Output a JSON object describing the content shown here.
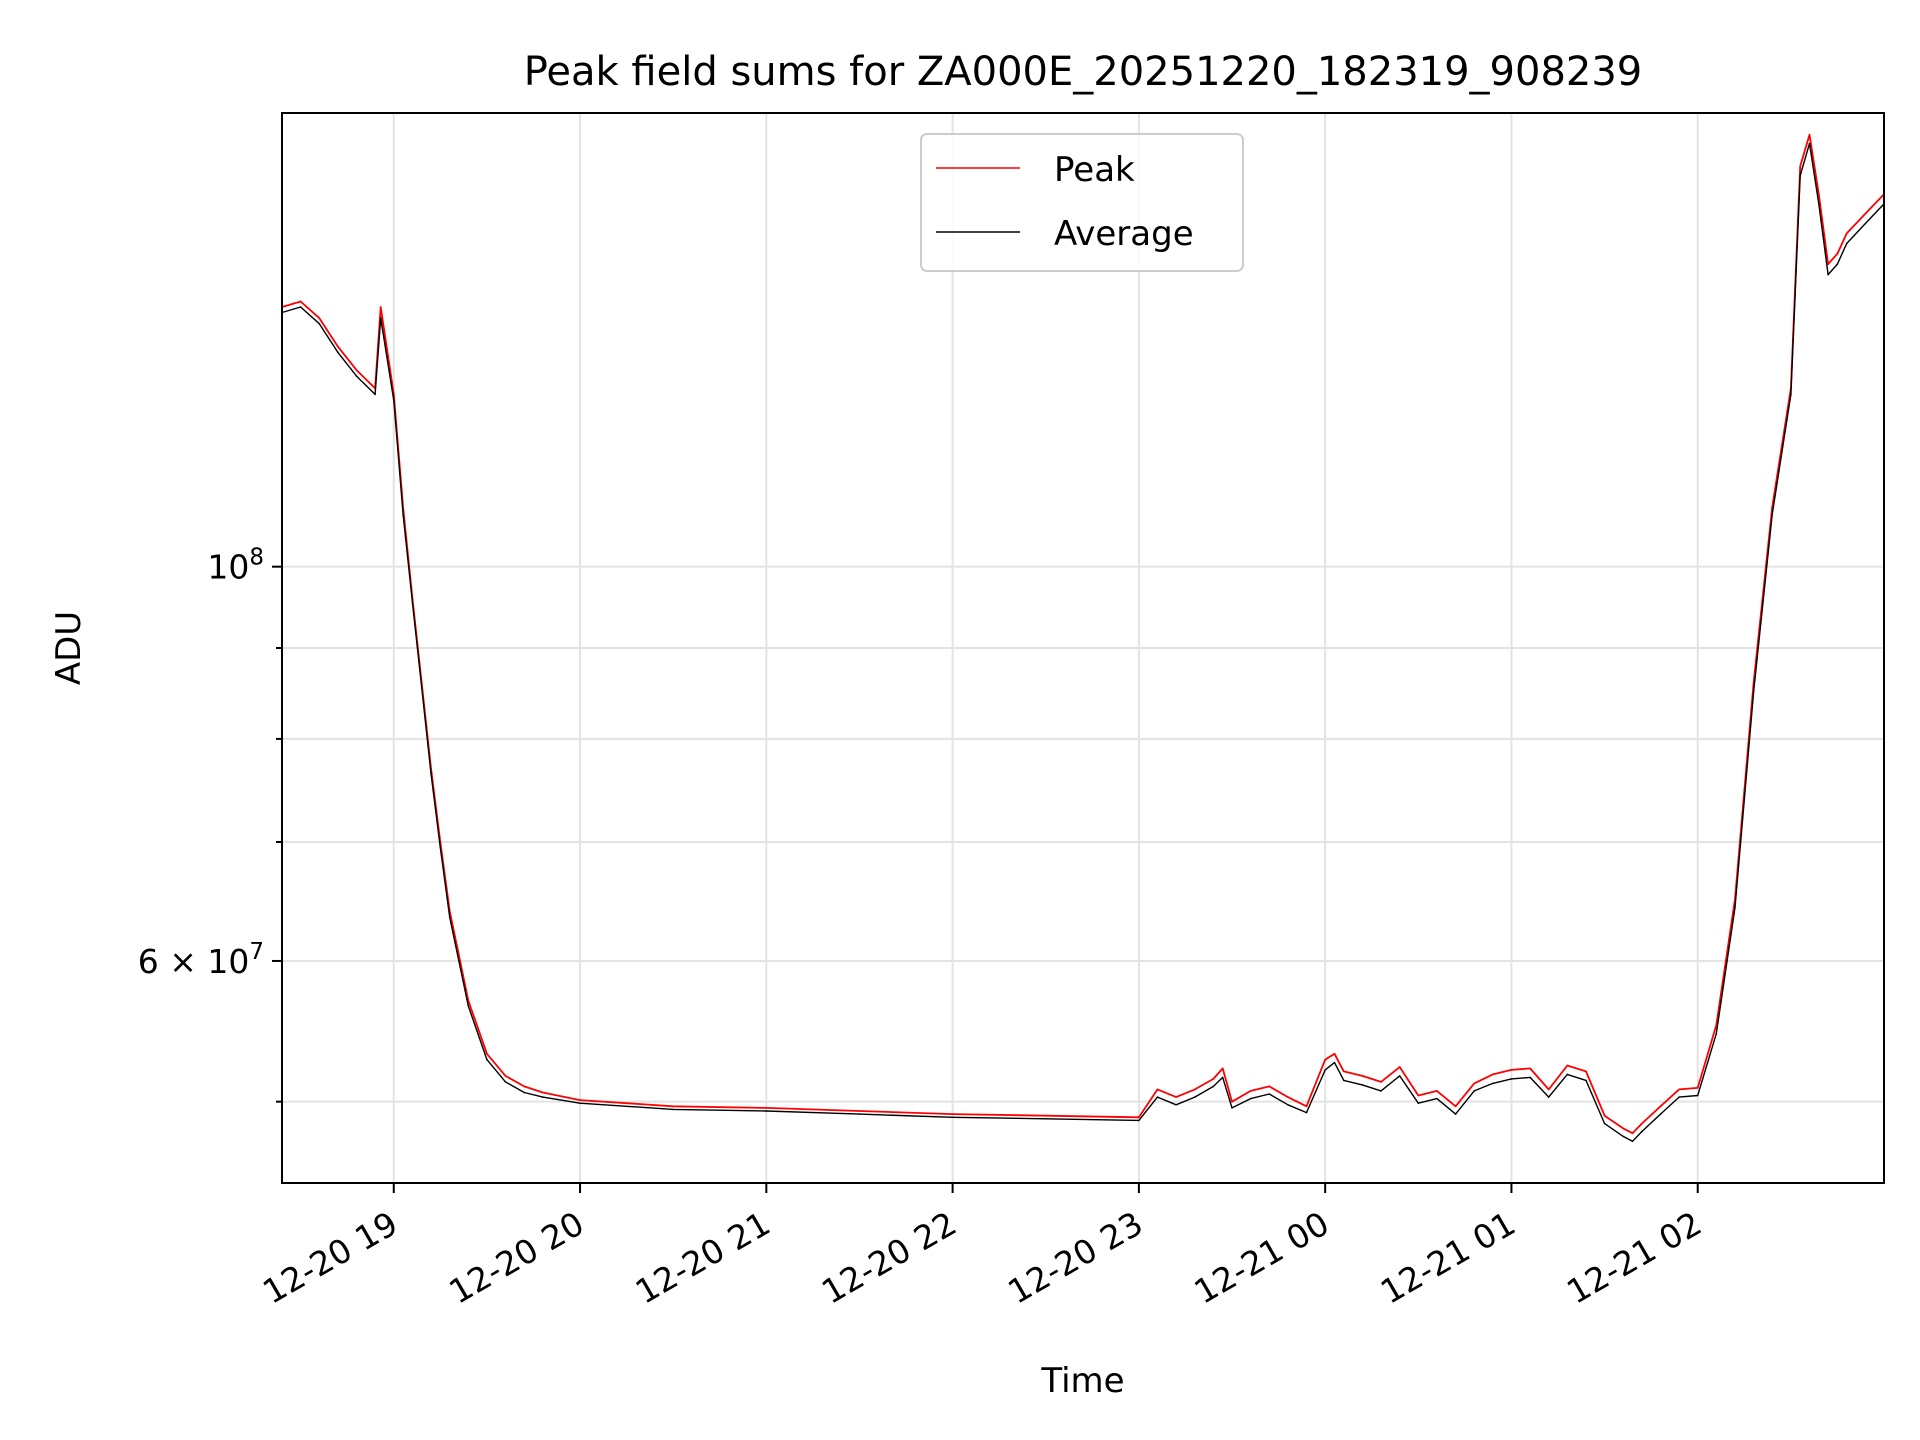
{
  "chart_data": {
    "type": "line",
    "title": "Peak field sums for ZA000E_20251220_182319_908239",
    "xlabel": "Time",
    "ylabel": "ADU",
    "yscale": "log",
    "ylim": [
      45000000,
      180000000
    ],
    "xlim_hours": [
      18.4,
      27.0
    ],
    "grid": true,
    "legend_position": "upper center",
    "x_ticks": [
      {
        "hour": 19,
        "label": "12-20 19"
      },
      {
        "hour": 20,
        "label": "12-20 20"
      },
      {
        "hour": 21,
        "label": "12-20 21"
      },
      {
        "hour": 22,
        "label": "12-20 22"
      },
      {
        "hour": 23,
        "label": "12-20 23"
      },
      {
        "hour": 24,
        "label": "12-21 00"
      },
      {
        "hour": 25,
        "label": "12-21 01"
      },
      {
        "hour": 26,
        "label": "12-21 02"
      }
    ],
    "y_major_ticks": [
      {
        "value": 60000000,
        "base": "6 × 10",
        "exp": "7"
      },
      {
        "value": 100000000,
        "base": "10",
        "exp": "8"
      }
    ],
    "y_minor_ticks": [
      50000000,
      70000000,
      80000000,
      90000000
    ],
    "series": [
      {
        "name": "Peak",
        "color": "#ff0000",
        "x": [
          18.4,
          18.5,
          18.6,
          18.7,
          18.8,
          18.9,
          18.93,
          19.0,
          19.05,
          19.1,
          19.15,
          19.2,
          19.25,
          19.3,
          19.4,
          19.5,
          19.6,
          19.7,
          19.8,
          20.0,
          20.5,
          21.0,
          21.5,
          22.0,
          22.5,
          23.0,
          23.1,
          23.2,
          23.3,
          23.4,
          23.45,
          23.5,
          23.6,
          23.7,
          23.8,
          23.9,
          24.0,
          24.05,
          24.1,
          24.2,
          24.3,
          24.4,
          24.5,
          24.6,
          24.7,
          24.8,
          24.9,
          25.0,
          25.1,
          25.2,
          25.3,
          25.4,
          25.5,
          25.6,
          25.65,
          25.7,
          25.8,
          25.9,
          26.0,
          26.1,
          26.2,
          26.3,
          26.4,
          26.5,
          26.55,
          26.6,
          26.65,
          26.7,
          26.75,
          26.8,
          26.9,
          27.0
        ],
        "values": [
          140000000,
          141000000,
          138000000,
          133000000,
          129000000,
          126000000,
          140000000,
          125000000,
          108000000,
          96000000,
          86000000,
          77000000,
          70000000,
          64000000,
          57000000,
          53200000,
          51700000,
          51000000,
          50600000,
          50100000,
          49700000,
          49600000,
          49400000,
          49200000,
          49100000,
          49000000,
          50800000,
          50300000,
          50800000,
          51500000,
          52200000,
          50000000,
          50700000,
          51000000,
          50300000,
          49700000,
          52800000,
          53200000,
          52000000,
          51700000,
          51300000,
          52300000,
          50400000,
          50700000,
          49700000,
          51200000,
          51800000,
          52100000,
          52200000,
          50800000,
          52400000,
          52000000,
          49100000,
          48300000,
          48000000,
          48600000,
          49700000,
          50800000,
          50900000,
          55200000,
          65000000,
          86000000,
          108000000,
          126000000,
          168000000,
          175000000,
          162000000,
          148000000,
          150000000,
          154000000,
          158000000,
          162000000
        ]
      },
      {
        "name": "Average",
        "color": "#000000",
        "x": [
          18.4,
          18.5,
          18.6,
          18.7,
          18.8,
          18.9,
          18.93,
          19.0,
          19.05,
          19.1,
          19.15,
          19.2,
          19.25,
          19.3,
          19.4,
          19.5,
          19.6,
          19.7,
          19.8,
          20.0,
          20.5,
          21.0,
          21.5,
          22.0,
          22.5,
          23.0,
          23.1,
          23.2,
          23.3,
          23.4,
          23.45,
          23.5,
          23.6,
          23.7,
          23.8,
          23.9,
          24.0,
          24.05,
          24.1,
          24.2,
          24.3,
          24.4,
          24.5,
          24.6,
          24.7,
          24.8,
          24.9,
          25.0,
          25.1,
          25.2,
          25.3,
          25.4,
          25.5,
          25.6,
          25.65,
          25.7,
          25.8,
          25.9,
          26.0,
          26.1,
          26.2,
          26.3,
          26.4,
          26.5,
          26.55,
          26.6,
          26.65,
          26.7,
          26.75,
          26.8,
          26.9,
          27.0
        ],
        "values": [
          139000000,
          140000000,
          137000000,
          132000000,
          128000000,
          125000000,
          138000000,
          124000000,
          107000000,
          95500000,
          85500000,
          76500000,
          69500000,
          63500000,
          56600000,
          52800000,
          51300000,
          50600000,
          50300000,
          49900000,
          49500000,
          49400000,
          49200000,
          49000000,
          48900000,
          48800000,
          50300000,
          49800000,
          50300000,
          51000000,
          51600000,
          49600000,
          50200000,
          50500000,
          49800000,
          49300000,
          52100000,
          52600000,
          51400000,
          51100000,
          50700000,
          51700000,
          49900000,
          50200000,
          49200000,
          50700000,
          51200000,
          51500000,
          51600000,
          50300000,
          51800000,
          51400000,
          48600000,
          47800000,
          47500000,
          48100000,
          49200000,
          50300000,
          50400000,
          54600000,
          64300000,
          85000000,
          107000000,
          125000000,
          166000000,
          173000000,
          160000000,
          146000000,
          148000000,
          152000000,
          156000000,
          160000000
        ]
      }
    ]
  }
}
